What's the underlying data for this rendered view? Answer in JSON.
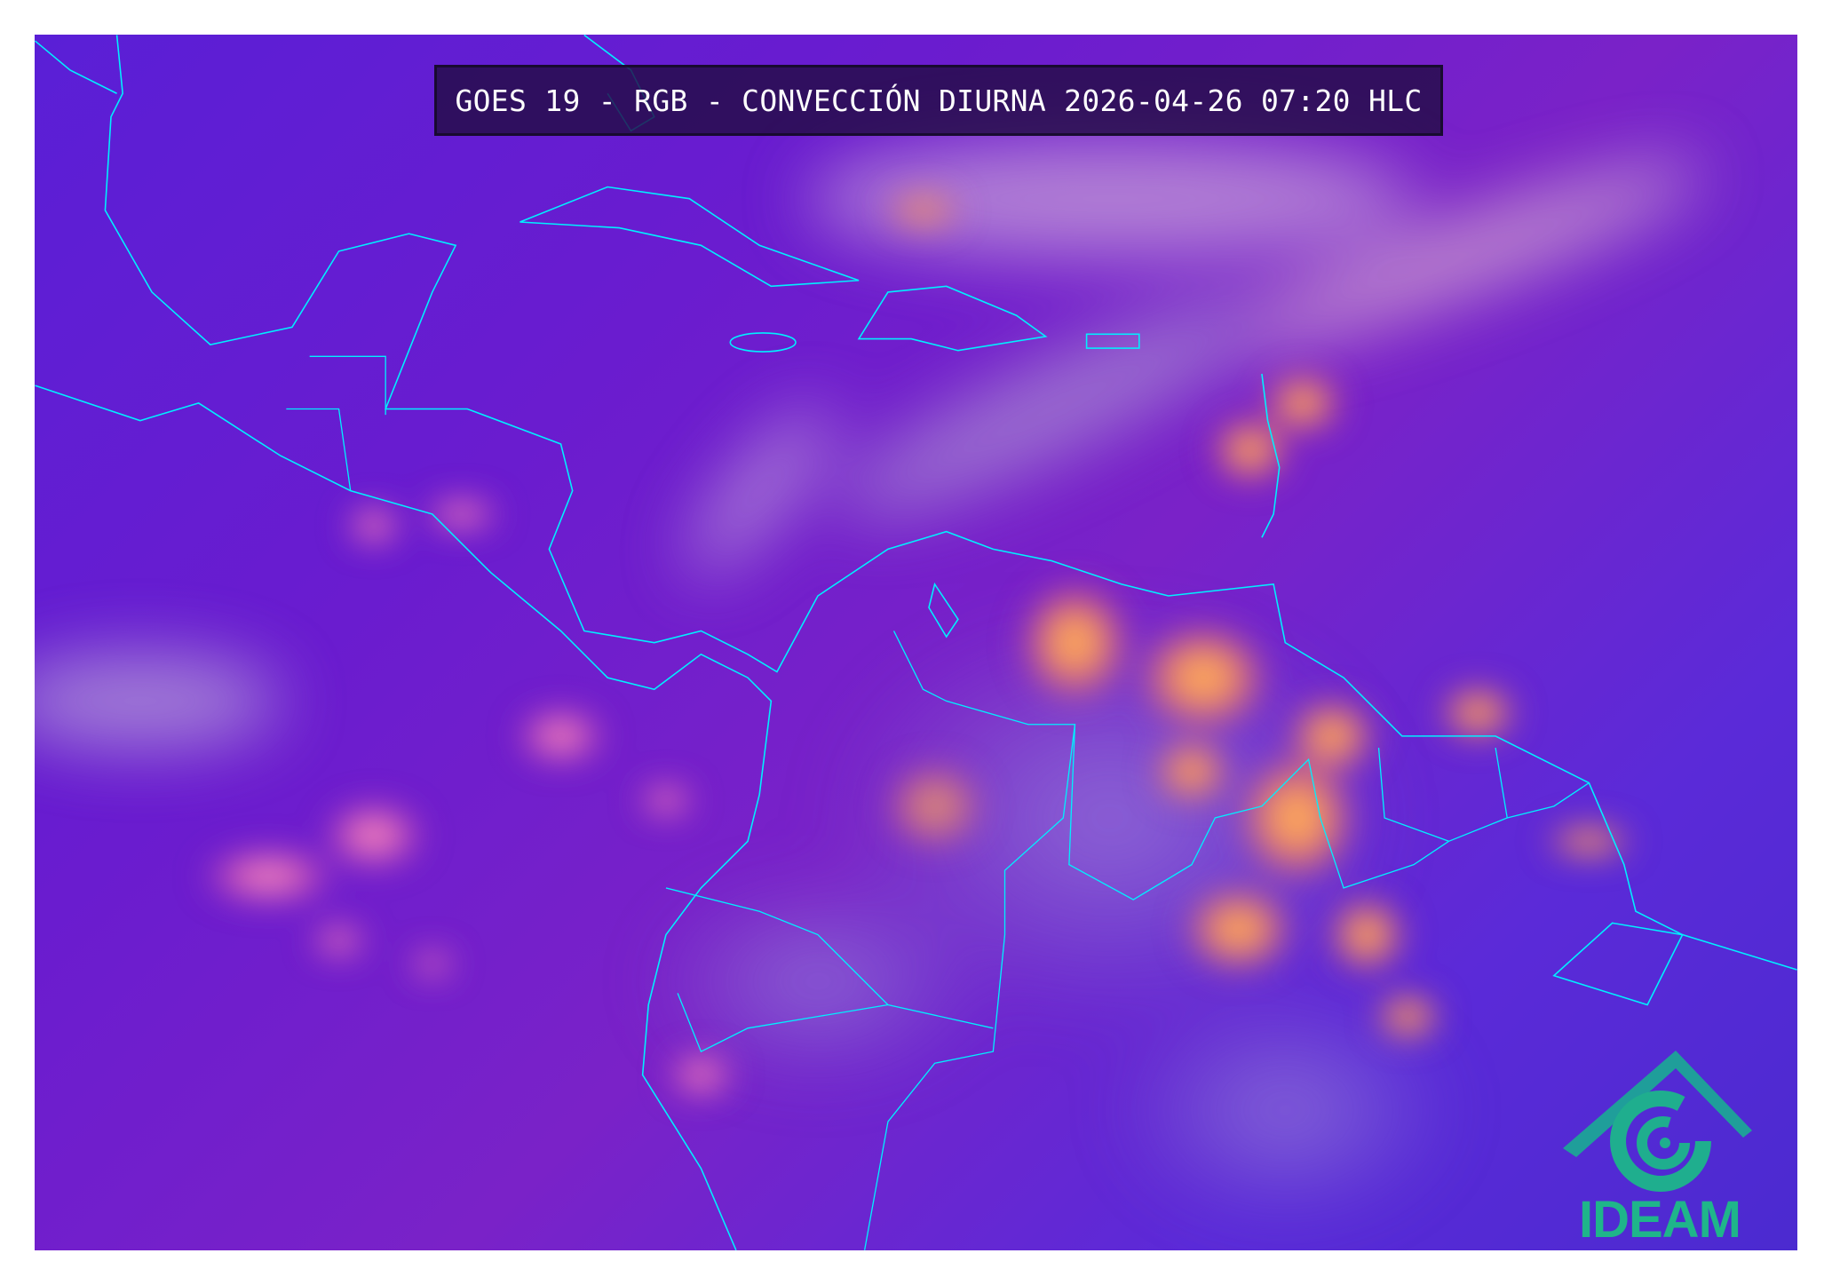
{
  "title": "GOES 19 - RGB - CONVECCIÓN DIURNA 2026-04-26 07:20 HLC",
  "logo": {
    "text": "IDEAM",
    "color": "#1fb58a",
    "symbol_color": "#1f9e9a"
  },
  "colors": {
    "background": "#6a1ccf",
    "coastline": "#00f0ff",
    "convection": "#ffb050",
    "thin_cloud": "#e8b0d8"
  }
}
